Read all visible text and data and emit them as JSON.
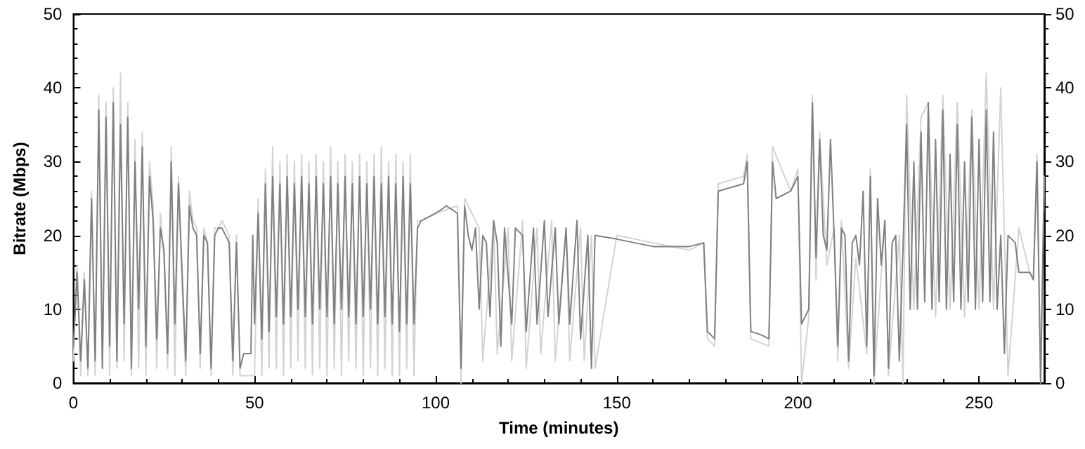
{
  "chart_data": {
    "type": "line",
    "xlabel": "Time (minutes)",
    "ylabel": "Bitrate (Mbps)",
    "xlim": [
      0,
      268
    ],
    "xticks": [
      0,
      50,
      100,
      150,
      200,
      250
    ],
    "ylim": [
      0,
      50
    ],
    "yticks": [
      0,
      10,
      20,
      30,
      40,
      50
    ],
    "y2lim": [
      0,
      50
    ],
    "y2ticks": [
      0,
      10,
      20,
      30,
      40,
      50
    ],
    "grid": false,
    "marker": "none",
    "line_style": "solid",
    "series": [
      {
        "color": "#d3d3d3",
        "x": [
          0,
          1,
          2,
          3,
          4,
          5,
          6,
          7,
          8,
          9,
          10,
          11,
          12,
          13,
          14,
          15,
          16,
          17,
          18,
          19,
          20,
          21,
          22,
          23,
          24,
          25,
          26,
          27,
          28,
          29,
          30,
          31,
          32,
          33,
          34,
          35,
          36,
          37,
          38,
          39,
          40,
          41,
          42,
          43,
          44,
          45,
          46,
          47,
          48,
          50,
          51,
          52,
          53,
          54,
          55,
          56,
          57,
          58,
          59,
          60,
          61,
          62,
          63,
          64,
          65,
          66,
          67,
          68,
          69,
          70,
          71,
          72,
          73,
          74,
          75,
          76,
          77,
          78,
          79,
          80,
          81,
          82,
          83,
          84,
          85,
          86,
          87,
          88,
          89,
          90,
          91,
          92,
          93,
          94,
          95,
          96,
          100,
          106,
          107,
          108,
          112,
          113,
          116,
          117,
          120,
          121,
          124,
          125,
          128,
          129,
          132,
          133,
          136,
          137,
          140,
          141,
          143,
          144,
          150,
          160,
          170,
          174,
          175,
          177,
          178,
          185,
          186,
          187,
          192,
          193,
          198,
          200,
          201,
          203,
          204,
          205,
          206,
          208,
          210,
          211,
          212,
          214,
          216,
          219,
          220,
          221,
          224,
          225,
          228,
          229,
          230,
          232,
          234,
          236,
          238,
          240,
          242,
          244,
          246,
          248,
          250,
          252,
          254,
          256,
          257,
          258,
          261,
          264,
          265,
          266,
          267,
          268
        ],
        "values": [
          3,
          16,
          1,
          15,
          1,
          26,
          1,
          39,
          2,
          38,
          1,
          40,
          2,
          42,
          3,
          38,
          1,
          33,
          2,
          34,
          1,
          30,
          24,
          2,
          23,
          17,
          2,
          32,
          1,
          28,
          13,
          1,
          26,
          22,
          21,
          2,
          21,
          19,
          1,
          21,
          21,
          22,
          21,
          20,
          1,
          20,
          1,
          1,
          1,
          1,
          25,
          1,
          29,
          2,
          32,
          2,
          30,
          1,
          31,
          2,
          30,
          3,
          31,
          2,
          30,
          1,
          31,
          2,
          30,
          1,
          32,
          2,
          30,
          1,
          31,
          3,
          30,
          2,
          31,
          1,
          30,
          2,
          31,
          1,
          32,
          2,
          30,
          1,
          31,
          1,
          30,
          2,
          31,
          1,
          22,
          22,
          23,
          24,
          0,
          25,
          21,
          3,
          22,
          4,
          21,
          3,
          22,
          2,
          21,
          4,
          22,
          3,
          21,
          3,
          21,
          3,
          20,
          2,
          20,
          19,
          18,
          19,
          6,
          5,
          27,
          28,
          31,
          6,
          5,
          32,
          26,
          29,
          0,
          9,
          39,
          14,
          34,
          16,
          21,
          3,
          22,
          2,
          17,
          4,
          29,
          0,
          22,
          1,
          20,
          0,
          39,
          10,
          36,
          38,
          9,
          39,
          10,
          38,
          9,
          37,
          10,
          42,
          10,
          40,
          20,
          1,
          21,
          15,
          14,
          31,
          0,
          28
        ]
      },
      {
        "color": "#808080",
        "x": [
          0,
          1,
          2,
          3,
          4,
          5,
          6,
          7,
          8,
          9,
          10,
          11,
          12,
          13,
          14,
          15,
          16,
          17,
          18,
          19,
          20,
          21,
          22,
          23,
          24,
          25,
          26,
          27,
          28,
          29,
          30,
          31,
          32,
          33,
          34,
          35,
          36,
          37,
          38,
          39,
          40,
          41,
          42,
          43,
          44,
          45,
          46,
          47,
          48,
          49,
          49.5,
          50,
          51,
          52,
          53,
          54,
          55,
          56,
          57,
          58,
          59,
          60,
          61,
          62,
          63,
          64,
          65,
          66,
          67,
          68,
          69,
          70,
          71,
          72,
          73,
          74,
          75,
          76,
          77,
          78,
          79,
          80,
          81,
          82,
          83,
          84,
          85,
          86,
          87,
          88,
          89,
          90,
          91,
          92,
          93,
          94,
          95,
          96,
          100,
          103,
          106,
          107,
          108,
          109,
          110,
          111,
          112,
          113,
          114,
          115,
          116,
          117,
          118,
          119,
          121,
          122,
          124,
          125,
          127,
          128,
          130,
          131,
          133,
          134,
          136,
          137,
          139,
          140,
          142,
          143,
          144,
          150,
          160,
          170,
          174,
          175,
          177,
          178,
          185,
          186,
          187,
          190,
          192,
          193,
          194,
          198,
          200,
          201,
          203,
          204,
          205,
          206,
          207,
          208,
          209,
          210,
          211,
          212,
          213,
          214,
          215,
          216,
          217,
          218,
          219,
          220,
          221,
          222,
          223,
          224,
          225,
          226,
          227,
          228,
          229,
          230,
          231,
          232,
          233,
          234,
          235,
          236,
          237,
          238,
          239,
          240,
          241,
          242,
          243,
          244,
          245,
          246,
          247,
          248,
          249,
          250,
          251,
          252,
          253,
          254,
          255,
          256,
          257,
          258,
          260,
          261,
          264,
          265,
          266,
          267,
          268
        ],
        "values": [
          5,
          15,
          3,
          14,
          2,
          25,
          3,
          37,
          2,
          36,
          5,
          38,
          3,
          35,
          8,
          36,
          2,
          30,
          10,
          32,
          5,
          28,
          22,
          6,
          21,
          18,
          4,
          30,
          8,
          27,
          15,
          3,
          24,
          21,
          20,
          4,
          20,
          19,
          2,
          20,
          21,
          21,
          20,
          19,
          3,
          19,
          2,
          4,
          4,
          4,
          20,
          8,
          23,
          6,
          27,
          7,
          28,
          9,
          27,
          8,
          28,
          9,
          27,
          10,
          28,
          9,
          27,
          8,
          28,
          10,
          27,
          9,
          28,
          8,
          27,
          10,
          28,
          9,
          27,
          8,
          28,
          9,
          27,
          10,
          28,
          8,
          27,
          9,
          28,
          8,
          27,
          7,
          28,
          8,
          27,
          8,
          21,
          22,
          23,
          24,
          23,
          2,
          24,
          20,
          18,
          21,
          10,
          20,
          19,
          9,
          22,
          19,
          5,
          21,
          8,
          21,
          20,
          7,
          21,
          8,
          22,
          9,
          21,
          8,
          21,
          8,
          22,
          6,
          20,
          2,
          20,
          19.5,
          18.5,
          18.5,
          19,
          7,
          6,
          26,
          27,
          30,
          7,
          6.5,
          6,
          30,
          25,
          26,
          28,
          8,
          10,
          38,
          17,
          33,
          20,
          18,
          33,
          20,
          5,
          21,
          20,
          3,
          19,
          20,
          16,
          26,
          5,
          28,
          1,
          25,
          16,
          22,
          2,
          19,
          20,
          3,
          18,
          35,
          10,
          30,
          10,
          34,
          11,
          38,
          10,
          33,
          11,
          37,
          10,
          31,
          11,
          35,
          10,
          30,
          11,
          36,
          10,
          33,
          11,
          37,
          11,
          34,
          10,
          20,
          4,
          20,
          19,
          15,
          15,
          14,
          30,
          0,
          28
        ]
      }
    ]
  }
}
